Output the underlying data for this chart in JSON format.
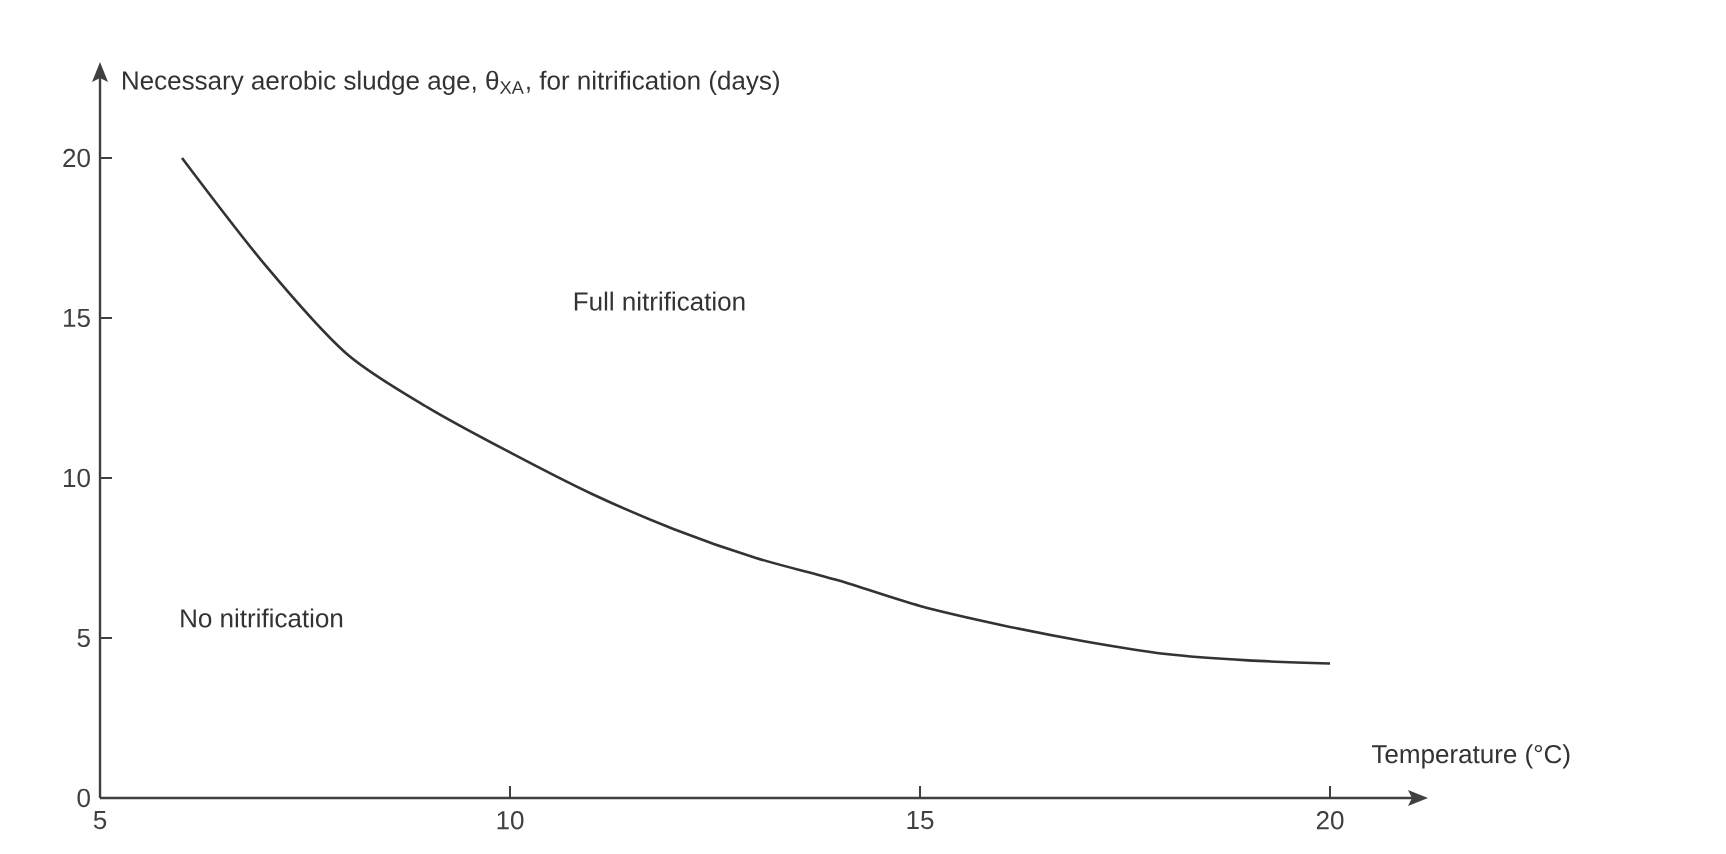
{
  "chart_data": {
    "type": "line",
    "xlabel": "Temperature (°C)",
    "ylabel": "Necessary aerobic sludge age, θ$_{XA}$, for nitrification (days)",
    "x": [
      6,
      7,
      8,
      9,
      10,
      11,
      12,
      13,
      14,
      15,
      16,
      17,
      18,
      19,
      20
    ],
    "series": [
      {
        "color": "#333333",
        "values": [
          20,
          16.7,
          13.9,
          12.2,
          10.8,
          9.5,
          8.4,
          7.5,
          6.8,
          6.0,
          5.4,
          4.9,
          4.5,
          4.3,
          4.2
        ]
      }
    ],
    "xlim": [
      5,
      21
    ],
    "ylim": [
      0,
      22.5
    ],
    "xticks": [
      5,
      10,
      15,
      20
    ],
    "yticks": [
      0,
      5,
      10,
      15,
      20
    ],
    "annotations": [
      "Full nitrification",
      "No nitrification"
    ],
    "grid": false,
    "marker": "none",
    "line_style": "solid"
  }
}
